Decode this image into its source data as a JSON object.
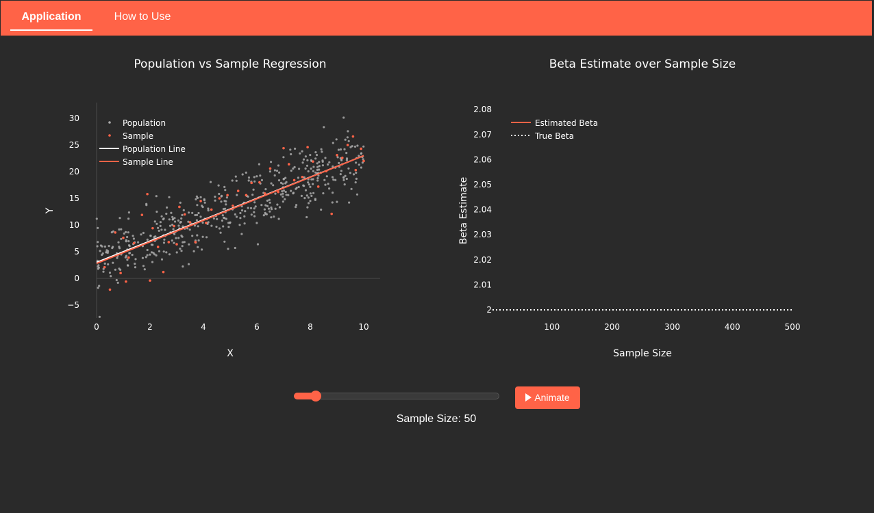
{
  "nav": {
    "tabs": [
      {
        "label": "Application",
        "active": true
      },
      {
        "label": "How to Use",
        "active": false
      }
    ]
  },
  "controls": {
    "animate_label": "Animate",
    "sample_size_label": "Sample Size: 50",
    "slider": {
      "min": 10,
      "max": 500,
      "value": 50
    }
  },
  "colors": {
    "accent": "#ff6347",
    "background": "#2a2a2a",
    "population_points": "#aaaaaa",
    "population_line": "#ffffff"
  },
  "chart_data": [
    {
      "type": "scatter",
      "title": "Population vs Sample Regression",
      "xlabel": "X",
      "ylabel": "Y",
      "xlim": [
        0,
        10.6
      ],
      "ylim": [
        -7,
        33
      ],
      "xticks": [
        0,
        2,
        4,
        6,
        8,
        10
      ],
      "yticks": [
        -5,
        0,
        5,
        10,
        15,
        20,
        25,
        30
      ],
      "legend_position": "top-left",
      "series": [
        {
          "name": "Population",
          "kind": "points",
          "color": "#aaaaaa",
          "count_shown": 500,
          "model": {
            "intercept": 3,
            "slope": 2,
            "noise_sd": 3
          }
        },
        {
          "name": "Sample",
          "kind": "points",
          "color": "#ff6347",
          "x": [
            0.3,
            0.5,
            0.7,
            0.9,
            1.0,
            1.1,
            1.2,
            1.4,
            1.7,
            1.9,
            2.0,
            2.1,
            2.3,
            2.5,
            2.7,
            2.9,
            3.0,
            3.1,
            3.3,
            3.5,
            3.7,
            3.9,
            4.1,
            4.3,
            4.6,
            4.9,
            5.1,
            5.3,
            5.6,
            5.8,
            6.1,
            6.3,
            6.5,
            6.8,
            7.0,
            7.2,
            7.4,
            7.7,
            7.9,
            8.1,
            8.3,
            8.6,
            8.8,
            9.0,
            9.2,
            9.4,
            9.6,
            9.7,
            9.9,
            10.0
          ],
          "y": [
            2.1,
            -2.1,
            8.6,
            1.0,
            7.6,
            -0.6,
            3.9,
            6.6,
            11.9,
            15.8,
            -0.4,
            9.4,
            5.9,
            1.2,
            6.8,
            9.8,
            6.4,
            13.4,
            12.0,
            10.5,
            6.8,
            14.5,
            10.4,
            12.9,
            15.0,
            15.6,
            13.6,
            16.4,
            15.6,
            17.9,
            18.0,
            15.9,
            20.6,
            16.2,
            24.4,
            21.4,
            18.4,
            19.0,
            24.6,
            21.9,
            17.2,
            20.1,
            12.1,
            23.1,
            22.6,
            25.0,
            26.6,
            20.3,
            24.3,
            22.0
          ]
        },
        {
          "name": "Population Line",
          "kind": "line",
          "color": "#ffffff",
          "intercept": 3.0,
          "slope": 2.0
        },
        {
          "name": "Sample Line",
          "kind": "line",
          "color": "#ff6347",
          "intercept": 2.8,
          "slope": 2.02
        }
      ]
    },
    {
      "type": "line",
      "title": "Beta Estimate over Sample Size",
      "xlabel": "Sample Size",
      "ylabel": "Beta Estimate",
      "xlim": [
        0,
        520
      ],
      "ylim": [
        1.998,
        2.082
      ],
      "xticks": [
        100,
        200,
        300,
        400,
        500
      ],
      "yticks": [
        2,
        2.01,
        2.02,
        2.03,
        2.04,
        2.05,
        2.06,
        2.07,
        2.08
      ],
      "legend_position": "top-left",
      "series": [
        {
          "name": "Estimated Beta",
          "color": "#ff6347",
          "x": [],
          "y": []
        },
        {
          "name": "True Beta",
          "color": "#ffffff",
          "dash": "dot",
          "x": [
            10,
            500
          ],
          "y": [
            2,
            2
          ]
        }
      ]
    }
  ]
}
